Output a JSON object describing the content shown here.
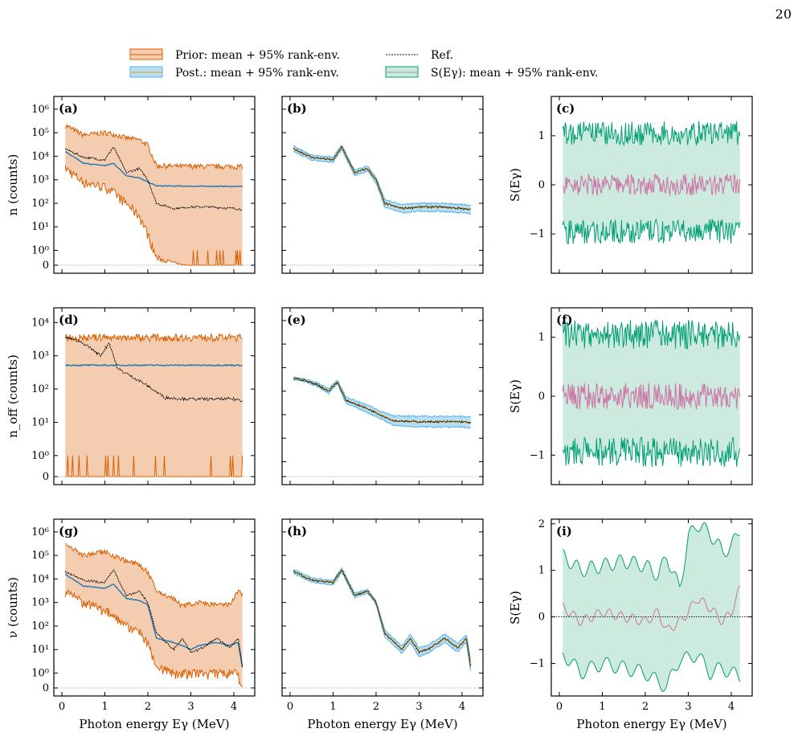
{
  "page_number": "20",
  "colors": {
    "prior_fill": "#f4cdb0",
    "prior_edge": "#d95f02",
    "post_fill": "#b9ddf3",
    "post_edge": "#56b4e9",
    "post_mean": "#e69f00",
    "prior_mean": "#1f77b4",
    "s_fill": "#cdeadf",
    "s_edge": "#009e73",
    "s_mean": "#cc79a7",
    "ref": "#000000"
  },
  "legend": [
    {
      "label": "Prior: mean + 95% rank-env.",
      "kind": "prior"
    },
    {
      "label": "Ref.",
      "kind": "ref"
    },
    {
      "label": "Post.: mean + 95% rank-env.",
      "kind": "post"
    },
    {
      "label": "S(Eγ): mean + 95% rank-env.",
      "kind": "s"
    }
  ],
  "chart_data": [
    {
      "panel": "(a)",
      "type": "line",
      "ylabel": "n (counts)",
      "yscale": "symlog",
      "yticks": [
        "0",
        "10^0",
        "10^1",
        "10^2",
        "10^3",
        "10^4",
        "10^5",
        "10^6"
      ],
      "xlim": [
        0,
        4.3
      ],
      "series_x": [
        0.1,
        0.5,
        1.0,
        1.2,
        1.5,
        1.8,
        2.0,
        2.2,
        2.6,
        3.0,
        3.5,
        4.0,
        4.2
      ],
      "ref": [
        20000,
        9000,
        7000,
        25000,
        2000,
        3000,
        1000,
        100,
        60,
        70,
        70,
        60,
        55
      ],
      "prior_mean": [
        15000,
        5000,
        4000,
        5000,
        1500,
        1200,
        800,
        550,
        540,
        530,
        530,
        520,
        520
      ],
      "prior_upper": [
        200000,
        80000,
        100000,
        90000,
        60000,
        50000,
        30000,
        4000,
        3800,
        3800,
        3700,
        3700,
        3700
      ],
      "prior_lower": [
        3000,
        800,
        500,
        300,
        100,
        30,
        5,
        0.5,
        0.2,
        0,
        0,
        0,
        0
      ]
    },
    {
      "panel": "(b)",
      "type": "line",
      "yscale": "symlog",
      "xlim": [
        0,
        4.3
      ],
      "series_x": [
        0.1,
        0.5,
        1.0,
        1.2,
        1.5,
        1.8,
        2.0,
        2.2,
        2.6,
        3.0,
        3.5,
        4.0,
        4.2
      ],
      "ref": [
        20000,
        9000,
        7000,
        25000,
        2000,
        3000,
        1000,
        100,
        60,
        70,
        70,
        60,
        55
      ],
      "post_upper": [
        26000,
        11000,
        9000,
        30000,
        2600,
        3800,
        1300,
        140,
        90,
        100,
        100,
        90,
        80
      ],
      "post_lower": [
        15000,
        7000,
        5500,
        19000,
        1500,
        2300,
        750,
        70,
        40,
        45,
        45,
        40,
        35
      ]
    },
    {
      "panel": "(c)",
      "type": "line",
      "ylabel": "S(Eγ)",
      "yticks": [
        "−1",
        "0",
        "1"
      ],
      "ylim": [
        -1.8,
        1.8
      ],
      "xlim": [
        0,
        4.3
      ],
      "mean": 0.0,
      "upper": 1.05,
      "lower": -0.95
    },
    {
      "panel": "(d)",
      "type": "line",
      "ylabel": "n_off (counts)",
      "yscale": "symlog",
      "yticks": [
        "0",
        "10^0",
        "10^1",
        "10^2",
        "10^3",
        "10^4"
      ],
      "xlim": [
        0,
        4.3
      ],
      "series_x": [
        0.1,
        0.3,
        0.6,
        0.9,
        1.1,
        1.3,
        1.6,
        1.9,
        2.1,
        2.4,
        3.0,
        3.5,
        4.0,
        4.2
      ],
      "ref": [
        3500,
        3000,
        2000,
        1000,
        2500,
        400,
        250,
        150,
        100,
        55,
        50,
        50,
        50,
        45
      ],
      "prior_mean": [
        520,
        520,
        520,
        520,
        520,
        520,
        520,
        520,
        520,
        520,
        520,
        520,
        520,
        520
      ],
      "prior_upper": [
        3600,
        3600,
        3600,
        3600,
        3600,
        3600,
        3600,
        3600,
        3600,
        3600,
        3600,
        3600,
        3600,
        3600
      ],
      "prior_lower": [
        0,
        0,
        0,
        0,
        0,
        0,
        0,
        0,
        0,
        0,
        0,
        0,
        0,
        0
      ]
    },
    {
      "panel": "(e)",
      "type": "line",
      "yscale": "symlog",
      "xlim": [
        0,
        4.3
      ],
      "series_x": [
        0.1,
        0.3,
        0.6,
        0.9,
        1.1,
        1.3,
        1.6,
        1.9,
        2.1,
        2.4,
        3.0,
        3.5,
        4.0,
        4.2
      ],
      "ref": [
        3500,
        3000,
        2000,
        1000,
        2500,
        400,
        250,
        150,
        100,
        55,
        50,
        50,
        50,
        45
      ],
      "post_upper": [
        4000,
        3400,
        2400,
        1300,
        2900,
        550,
        350,
        210,
        140,
        90,
        85,
        85,
        85,
        80
      ],
      "post_lower": [
        3000,
        2600,
        1700,
        800,
        2100,
        300,
        180,
        100,
        70,
        35,
        30,
        30,
        30,
        25
      ]
    },
    {
      "panel": "(f)",
      "type": "line",
      "ylabel": "S(Eγ)",
      "yticks": [
        "−1",
        "0",
        "1"
      ],
      "ylim": [
        -1.5,
        1.5
      ],
      "xlim": [
        0,
        4.3
      ],
      "mean": 0.0,
      "upper": 1.05,
      "lower": -0.95
    },
    {
      "panel": "(g)",
      "type": "line",
      "ylabel": "ν (counts)",
      "yscale": "symlog",
      "xlabel": "Photon energy Eγ (MeV)",
      "yticks": [
        "0",
        "10^0",
        "10^1",
        "10^2",
        "10^3",
        "10^4",
        "10^5",
        "10^6"
      ],
      "xticks": [
        "0",
        "1",
        "2",
        "3",
        "4"
      ],
      "xlim": [
        0,
        4.3
      ],
      "series_x": [
        0.1,
        0.5,
        1.0,
        1.2,
        1.5,
        1.8,
        2.0,
        2.2,
        2.6,
        2.8,
        3.0,
        3.2,
        3.6,
        3.9,
        4.1,
        4.25
      ],
      "ref": [
        20000,
        9000,
        7000,
        25000,
        2000,
        3000,
        1000,
        50,
        10,
        30,
        8,
        10,
        30,
        12,
        30,
        0.5
      ],
      "prior_mean": [
        15000,
        5000,
        4000,
        6000,
        1500,
        1200,
        800,
        30,
        20,
        15,
        10,
        15,
        20,
        15,
        20,
        0.5
      ],
      "prior_upper": [
        300000,
        100000,
        150000,
        100000,
        60000,
        40000,
        20000,
        3000,
        1500,
        700,
        900,
        1000,
        800,
        800,
        3000,
        2000
      ],
      "prior_lower": [
        3000,
        1000,
        500,
        300,
        100,
        60,
        20,
        2,
        1,
        1,
        1,
        1,
        1,
        1,
        1,
        0
      ]
    },
    {
      "panel": "(h)",
      "type": "line",
      "yscale": "symlog",
      "xlabel": "Photon energy Eγ (MeV)",
      "xticks": [
        "0",
        "1",
        "2",
        "3",
        "4"
      ],
      "xlim": [
        0,
        4.3
      ],
      "series_x": [
        0.1,
        0.5,
        1.0,
        1.2,
        1.5,
        1.8,
        2.0,
        2.2,
        2.6,
        2.8,
        3.0,
        3.2,
        3.6,
        3.9,
        4.1,
        4.25
      ],
      "ref": [
        20000,
        9000,
        7000,
        25000,
        2000,
        3000,
        1000,
        50,
        10,
        30,
        8,
        10,
        30,
        12,
        30,
        0.5
      ],
      "post_upper": [
        25000,
        11000,
        8500,
        30000,
        2500,
        3600,
        1200,
        70,
        14,
        45,
        12,
        15,
        45,
        18,
        45,
        1
      ],
      "post_lower": [
        16000,
        7500,
        5500,
        20000,
        1600,
        2500,
        800,
        35,
        7,
        20,
        5,
        7,
        20,
        8,
        20,
        0.3
      ]
    },
    {
      "panel": "(i)",
      "type": "line",
      "ylabel": "S(Eγ)",
      "xlabel": "Photon energy Eγ (MeV)",
      "yticks": [
        "−1",
        "0",
        "1",
        "2"
      ],
      "xticks": [
        "0",
        "1",
        "2",
        "3",
        "4"
      ],
      "ylim": [
        -1.7,
        2.1
      ],
      "xlim": [
        0,
        4.3
      ],
      "series_x": [
        0.1,
        0.5,
        1.0,
        1.5,
        2.0,
        2.3,
        2.5,
        2.8,
        3.0,
        3.2,
        3.5,
        3.8,
        4.0,
        4.2
      ],
      "mean": [
        0.2,
        -0.1,
        0.1,
        0,
        -0.1,
        0.1,
        -0.3,
        -0.1,
        0.1,
        0.4,
        0.2,
        -0.1,
        0.1,
        0.6
      ],
      "upper": [
        1.3,
        1,
        1.1,
        1.2,
        1.1,
        0.9,
        1.3,
        0.6,
        1.7,
        2,
        1.8,
        1.4,
        1.5,
        1.9
      ],
      "lower": [
        -0.8,
        -1.2,
        -1,
        -1.1,
        -1.2,
        -1.4,
        -1.5,
        -0.9,
        -0.9,
        -0.8,
        -1.2,
        -1.1,
        -1.2,
        -1.3
      ]
    }
  ]
}
